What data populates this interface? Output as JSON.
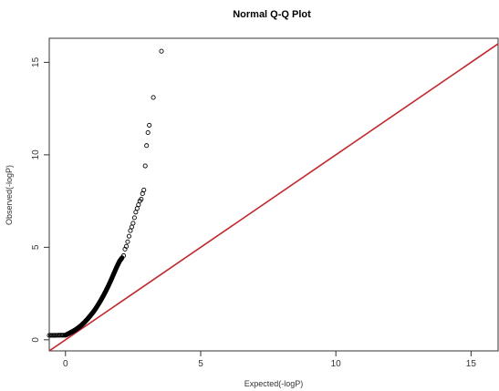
{
  "chart_data": {
    "type": "scatter",
    "title": "Normal Q-Q Plot",
    "xlabel": "Expected(-logP)",
    "ylabel": "Observed(-logP)",
    "xlim": [
      -0.6,
      16
    ],
    "ylim": [
      -0.6,
      16.3
    ],
    "xticks": [
      0,
      5,
      10,
      15
    ],
    "yticks": [
      0,
      5,
      10,
      15
    ],
    "xtick_labels": [
      "0",
      "5",
      "10",
      "15"
    ],
    "ytick_labels": [
      "0",
      "5",
      "10",
      "15"
    ],
    "grid": false,
    "reference_line": {
      "slope": 1,
      "intercept": 0,
      "color": "#c0282d"
    },
    "point_color": "#000000",
    "marker": "open-circle",
    "dense_curve": {
      "x": [
        0.0,
        0.1,
        0.2,
        0.3,
        0.4,
        0.5,
        0.6,
        0.7,
        0.8,
        0.9,
        1.0,
        1.1,
        1.2,
        1.3,
        1.4,
        1.5,
        1.6,
        1.7,
        1.8,
        1.9,
        2.0,
        2.1
      ],
      "y": [
        0.25,
        0.32,
        0.4,
        0.48,
        0.57,
        0.68,
        0.8,
        0.94,
        1.1,
        1.27,
        1.45,
        1.65,
        1.88,
        2.12,
        2.38,
        2.66,
        2.96,
        3.28,
        3.62,
        3.95,
        4.25,
        4.45
      ]
    },
    "tail_points": {
      "x": [
        2.15,
        2.2,
        2.25,
        2.3,
        2.35,
        2.4,
        2.45,
        2.5,
        2.55,
        2.6,
        2.65,
        2.7,
        2.75,
        2.8,
        2.85,
        2.9,
        2.95,
        3.0,
        3.05,
        3.1,
        3.25,
        3.55
      ],
      "y": [
        4.55,
        4.9,
        5.05,
        5.3,
        5.6,
        5.9,
        6.1,
        6.3,
        6.6,
        6.9,
        7.1,
        7.3,
        7.5,
        7.6,
        7.9,
        8.1,
        9.4,
        10.5,
        11.2,
        11.6,
        13.1,
        15.6
      ]
    }
  }
}
